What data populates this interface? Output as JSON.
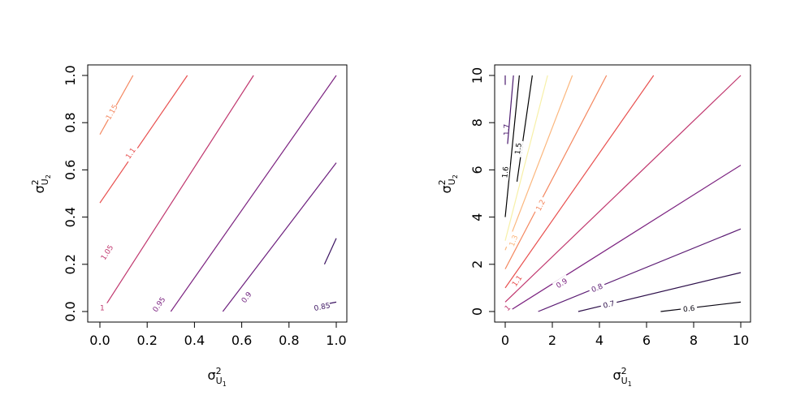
{
  "chart_data": [
    {
      "type": "contour",
      "title": "",
      "xlabel": {
        "base": "σ",
        "sup": "2",
        "sub": "U",
        "subsub": "1"
      },
      "ylabel": {
        "base": "σ",
        "sup": "2",
        "sub": "U",
        "subsub": "2"
      },
      "xlim": [
        0,
        1
      ],
      "ylim": [
        0,
        1
      ],
      "xticks": [
        0.0,
        0.2,
        0.4,
        0.6,
        0.8,
        1.0
      ],
      "yticks": [
        0.0,
        0.2,
        0.4,
        0.6,
        0.8,
        1.0
      ],
      "xtick_labels": [
        "0.0",
        "0.2",
        "0.4",
        "0.6",
        "0.8",
        "1.0"
      ],
      "ytick_labels": [
        "0.0",
        "0.2",
        "0.4",
        "0.6",
        "0.8",
        "1.0"
      ],
      "grid": false,
      "contours": [
        {
          "level": "1.15",
          "color": "#f4875f",
          "x": [
            0.0,
            0.14
          ],
          "y": [
            0.75,
            1.0
          ],
          "label_at": [
            0.05,
            0.845
          ]
        },
        {
          "level": "1.1",
          "color": "#e8504f",
          "x": [
            0.0,
            0.37
          ],
          "y": [
            0.46,
            1.0
          ],
          "label_at": [
            0.13,
            0.67
          ]
        },
        {
          "level": "1.05",
          "color": "#c0376e",
          "x": [
            0.02,
            0.65
          ],
          "y": [
            0.02,
            1.0
          ],
          "label_at": [
            0.03,
            0.25
          ]
        },
        {
          "level": "1",
          "color": "#c0376e",
          "x": [],
          "y": [],
          "label_at": [
            0.01,
            0.015
          ]
        },
        {
          "level": "0.95",
          "color": "#7c2380",
          "x": [
            0.3,
            1.0
          ],
          "y": [
            0.0,
            1.0
          ],
          "label_at": [
            0.25,
            0.03
          ]
        },
        {
          "level": "0.9",
          "color": "#6c1f7d",
          "x": [
            0.52,
            1.0
          ],
          "y": [
            0.0,
            0.63
          ],
          "label_at": [
            0.62,
            0.06
          ]
        },
        {
          "level": "0.85",
          "color": "#3a1260",
          "x": [
            0.95,
            1.0
          ],
          "y": [
            0.03,
            0.04
          ],
          "label_at": [
            0.94,
            0.02
          ]
        },
        {
          "level": "",
          "color": "#3a1260",
          "x": [
            0.95,
            1.0
          ],
          "y": [
            0.2,
            0.31
          ],
          "label_at": null
        }
      ]
    },
    {
      "type": "contour",
      "title": "",
      "xlabel": {
        "base": "σ",
        "sup": "2",
        "sub": "U",
        "subsub": "1"
      },
      "ylabel": {
        "base": "σ",
        "sup": "2",
        "sub": "U",
        "subsub": "2"
      },
      "xlim": [
        0,
        10
      ],
      "ylim": [
        0,
        10
      ],
      "xticks": [
        0,
        2,
        4,
        6,
        8,
        10
      ],
      "yticks": [
        0,
        2,
        4,
        6,
        8,
        10
      ],
      "xtick_labels": [
        "0",
        "2",
        "4",
        "6",
        "8",
        "10"
      ],
      "ytick_labels": [
        "0",
        "2",
        "4",
        "6",
        "8",
        "10"
      ],
      "grid": false,
      "contours": [
        {
          "level": "1.7",
          "color": "#4b1a6e",
          "x": [
            0.0,
            0.0
          ],
          "y": [
            9.6,
            10.0
          ],
          "label_at": [
            0.05,
            7.7
          ]
        },
        {
          "level": "",
          "color": "#4b1a6e",
          "x": [
            0.1,
            0.35
          ],
          "y": [
            7.1,
            10.0
          ],
          "label_at": null
        },
        {
          "level": "1.6",
          "color": "#000000",
          "x": [
            0.0,
            0.6
          ],
          "y": [
            4.0,
            10.0
          ],
          "label_at": [
            0.0,
            5.9
          ]
        },
        {
          "level": "1.5",
          "color": "#000000",
          "x": [
            0.5,
            1.15
          ],
          "y": [
            5.5,
            10.0
          ],
          "label_at": [
            0.55,
            6.9
          ]
        },
        {
          "level": "",
          "color": "#f7f0a8",
          "x": [
            0.0,
            1.8
          ],
          "y": [
            3.0,
            10.0
          ],
          "label_at": null
        },
        {
          "level": "1.3",
          "color": "#fbb77e",
          "x": [
            0.0,
            2.85
          ],
          "y": [
            2.6,
            10.0
          ],
          "label_at": [
            0.35,
            3.0
          ]
        },
        {
          "level": "1.2",
          "color": "#f4875f",
          "x": [
            0.0,
            4.3
          ],
          "y": [
            1.8,
            10.0
          ],
          "label_at": [
            1.5,
            4.5
          ]
        },
        {
          "level": "1.1",
          "color": "#e8504f",
          "x": [
            0.0,
            6.3
          ],
          "y": [
            1.0,
            10.0
          ],
          "label_at": [
            0.5,
            1.3
          ]
        },
        {
          "level": "1",
          "color": "#c0376e",
          "x": [
            0.0,
            10.0
          ],
          "y": [
            0.4,
            10.0
          ],
          "label_at": [
            0.1,
            0.15
          ]
        },
        {
          "level": "0.9",
          "color": "#7c2380",
          "x": [
            0.3,
            10.0
          ],
          "y": [
            0.1,
            6.2
          ],
          "label_at": [
            2.4,
            1.2
          ]
        },
        {
          "level": "0.8",
          "color": "#5c1d74",
          "x": [
            1.4,
            10.0
          ],
          "y": [
            0.0,
            3.5
          ],
          "label_at": [
            3.9,
            1.0
          ]
        },
        {
          "level": "0.7",
          "color": "#2d0f4a",
          "x": [
            3.1,
            10.0
          ],
          "y": [
            0.0,
            1.65
          ],
          "label_at": [
            4.4,
            0.3
          ]
        },
        {
          "level": "0.6",
          "color": "#0a0612",
          "x": [
            6.6,
            10.0
          ],
          "y": [
            0.0,
            0.4
          ],
          "label_at": [
            7.8,
            0.12
          ]
        }
      ]
    }
  ]
}
